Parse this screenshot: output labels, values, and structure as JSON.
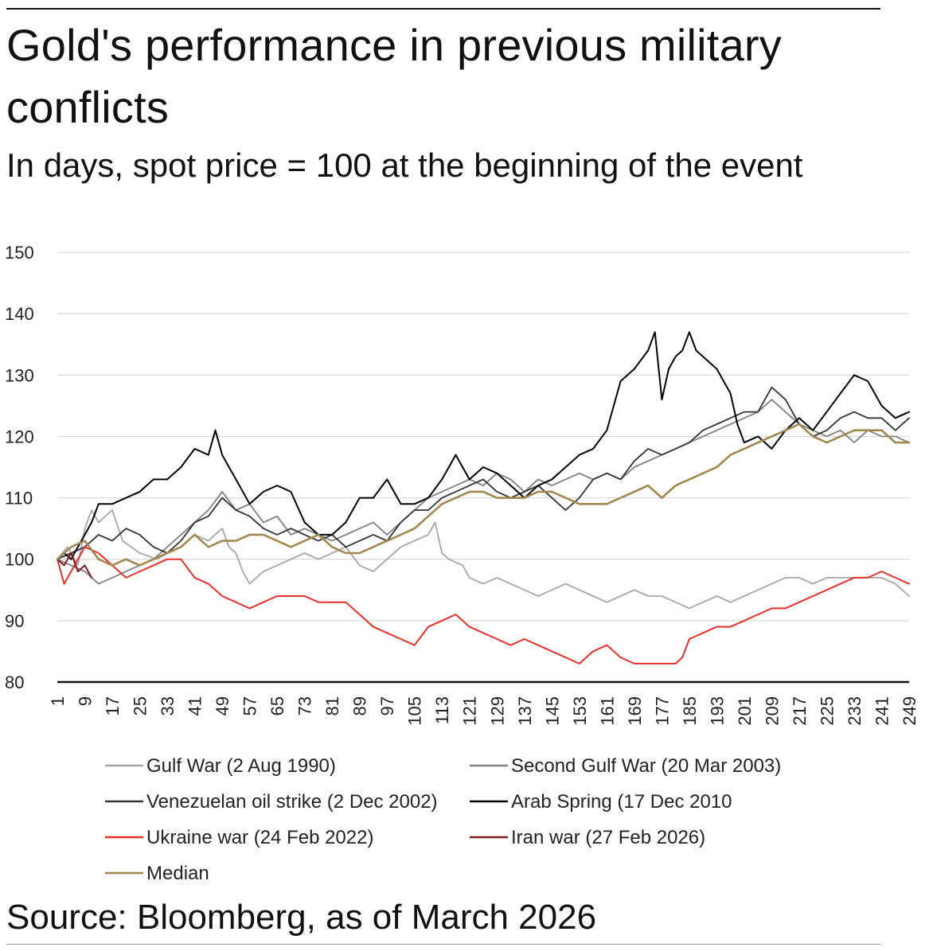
{
  "header": {
    "title": "Gold's performance in previous military conflicts",
    "subtitle": "In days, spot price = 100 at the beginning of the event"
  },
  "footer": {
    "source": "Source: Bloomberg, as of March 2026"
  },
  "chart_data": {
    "type": "line",
    "title": "Gold's performance in previous military conflicts",
    "subtitle": "In days, spot price = 100 at the beginning of the event",
    "xlabel": "",
    "ylabel": "",
    "xlim": [
      1,
      249
    ],
    "ylim": [
      80,
      150
    ],
    "yticks": [
      80,
      90,
      100,
      110,
      120,
      130,
      140,
      150
    ],
    "xticks": [
      1,
      9,
      17,
      25,
      33,
      41,
      49,
      57,
      65,
      73,
      81,
      89,
      97,
      105,
      113,
      121,
      129,
      137,
      145,
      153,
      161,
      169,
      177,
      185,
      193,
      201,
      209,
      217,
      225,
      233,
      241,
      249
    ],
    "grid": "horizontal",
    "legend_position": "bottom",
    "series": [
      {
        "name": "Gulf War (2 Aug 1990)",
        "color": "#a6a6a6",
        "width": 1.8,
        "x": [
          1,
          4,
          7,
          9,
          11,
          13,
          17,
          20,
          25,
          30,
          33,
          37,
          41,
          45,
          49,
          51,
          53,
          55,
          57,
          61,
          65,
          69,
          73,
          77,
          81,
          85,
          89,
          93,
          97,
          101,
          105,
          109,
          111,
          113,
          115,
          119,
          121,
          125,
          129,
          133,
          137,
          141,
          145,
          149,
          153,
          157,
          161,
          165,
          169,
          173,
          177,
          181,
          185,
          189,
          193,
          197,
          201,
          205,
          209,
          213,
          217,
          221,
          225,
          229,
          233,
          237,
          241,
          245,
          249
        ],
        "y": [
          100,
          102,
          99,
          105,
          108,
          106,
          108,
          103,
          101,
          100,
          101,
          102,
          104,
          103,
          105,
          102,
          101,
          98,
          96,
          98,
          99,
          100,
          101,
          100,
          101,
          102,
          99,
          98,
          100,
          102,
          103,
          104,
          106,
          101,
          100,
          99,
          97,
          96,
          97,
          96,
          95,
          94,
          95,
          96,
          95,
          94,
          93,
          94,
          95,
          94,
          94,
          93,
          92,
          93,
          94,
          93,
          94,
          95,
          96,
          97,
          97,
          96,
          97,
          97,
          97,
          97,
          97,
          96,
          94
        ]
      },
      {
        "name": "Second Gulf War (20 Mar 2003)",
        "color": "#808080",
        "width": 1.8,
        "x": [
          1,
          5,
          9,
          13,
          17,
          21,
          25,
          29,
          33,
          37,
          41,
          45,
          49,
          53,
          57,
          61,
          65,
          69,
          73,
          77,
          81,
          85,
          89,
          93,
          97,
          101,
          105,
          109,
          113,
          117,
          121,
          125,
          129,
          133,
          137,
          141,
          145,
          149,
          153,
          157,
          161,
          165,
          169,
          173,
          177,
          181,
          185,
          189,
          193,
          197,
          201,
          205,
          209,
          213,
          217,
          221,
          225,
          229,
          233,
          237,
          241,
          245,
          249
        ],
        "y": [
          100,
          99,
          98,
          96,
          97,
          98,
          99,
          100,
          102,
          104,
          106,
          108,
          111,
          108,
          109,
          106,
          107,
          104,
          105,
          104,
          103,
          104,
          105,
          106,
          104,
          106,
          108,
          110,
          111,
          112,
          113,
          112,
          114,
          113,
          111,
          113,
          112,
          113,
          114,
          113,
          114,
          113,
          115,
          116,
          117,
          118,
          119,
          120,
          121,
          122,
          123,
          124,
          126,
          124,
          122,
          121,
          120,
          121,
          119,
          121,
          120,
          120,
          119
        ]
      },
      {
        "name": "Venezuelan oil strike (2 Dec 2002)",
        "color": "#333333",
        "width": 1.8,
        "x": [
          1,
          5,
          9,
          13,
          17,
          21,
          25,
          29,
          33,
          37,
          41,
          45,
          49,
          53,
          57,
          61,
          65,
          69,
          73,
          77,
          81,
          85,
          89,
          93,
          97,
          101,
          105,
          109,
          113,
          117,
          121,
          125,
          129,
          133,
          137,
          141,
          145,
          149,
          153,
          157,
          161,
          165,
          169,
          173,
          177,
          181,
          185,
          189,
          193,
          197,
          201,
          205,
          209,
          213,
          217,
          221,
          225,
          229,
          233,
          237,
          241,
          245,
          249
        ],
        "y": [
          100,
          101,
          102,
          104,
          103,
          105,
          104,
          102,
          101,
          103,
          106,
          107,
          110,
          108,
          107,
          105,
          104,
          105,
          104,
          103,
          104,
          102,
          103,
          104,
          103,
          106,
          108,
          108,
          110,
          111,
          112,
          113,
          111,
          110,
          111,
          112,
          110,
          108,
          110,
          113,
          114,
          113,
          116,
          118,
          117,
          118,
          119,
          121,
          122,
          123,
          124,
          124,
          128,
          126,
          122,
          120,
          121,
          123,
          124,
          123,
          123,
          121,
          123
        ]
      },
      {
        "name": "Arab Spring (17 Dec 2010",
        "color": "#000000",
        "width": 2,
        "x": [
          1,
          3,
          5,
          7,
          9,
          11,
          13,
          17,
          21,
          25,
          29,
          33,
          37,
          41,
          45,
          47,
          49,
          51,
          53,
          57,
          61,
          65,
          69,
          73,
          77,
          81,
          85,
          89,
          93,
          97,
          101,
          105,
          109,
          113,
          117,
          121,
          125,
          129,
          133,
          137,
          141,
          145,
          149,
          153,
          157,
          161,
          165,
          169,
          173,
          175,
          177,
          179,
          181,
          183,
          185,
          187,
          189,
          193,
          197,
          199,
          201,
          205,
          209,
          213,
          217,
          221,
          225,
          229,
          233,
          237,
          241,
          245,
          249
        ],
        "y": [
          100,
          101,
          100,
          102,
          104,
          106,
          109,
          109,
          110,
          111,
          113,
          113,
          115,
          118,
          117,
          121,
          117,
          115,
          113,
          109,
          111,
          112,
          111,
          106,
          104,
          104,
          106,
          110,
          110,
          113,
          109,
          109,
          110,
          113,
          117,
          113,
          115,
          114,
          112,
          110,
          112,
          113,
          115,
          117,
          118,
          121,
          129,
          131,
          134,
          137,
          126,
          131,
          133,
          134,
          137,
          134,
          133,
          131,
          127,
          122,
          119,
          120,
          118,
          121,
          123,
          121,
          124,
          127,
          130,
          129,
          125,
          123,
          124
        ]
      },
      {
        "name": "Ukraine war (24 Feb 2022)",
        "color": "#e4312b",
        "width": 2,
        "x": [
          1,
          3,
          5,
          7,
          9,
          13,
          17,
          21,
          25,
          29,
          33,
          37,
          41,
          45,
          49,
          53,
          57,
          61,
          65,
          69,
          73,
          77,
          81,
          85,
          89,
          93,
          97,
          101,
          105,
          109,
          113,
          117,
          121,
          125,
          129,
          133,
          137,
          141,
          145,
          149,
          153,
          157,
          161,
          165,
          169,
          173,
          177,
          181,
          183,
          185,
          189,
          193,
          197,
          201,
          205,
          209,
          213,
          217,
          221,
          225,
          229,
          233,
          237,
          241,
          245,
          249
        ],
        "y": [
          100,
          96,
          98,
          100,
          102,
          101,
          99,
          97,
          98,
          99,
          100,
          100,
          97,
          96,
          94,
          93,
          92,
          93,
          94,
          94,
          94,
          93,
          93,
          93,
          91,
          89,
          88,
          87,
          86,
          89,
          90,
          91,
          89,
          88,
          87,
          86,
          87,
          86,
          85,
          84,
          83,
          85,
          86,
          84,
          83,
          83,
          83,
          83,
          84,
          87,
          88,
          89,
          89,
          90,
          91,
          92,
          92,
          93,
          94,
          95,
          96,
          97,
          97,
          98,
          97,
          96
        ]
      },
      {
        "name": "Iran war (27 Feb 2026)",
        "color": "#7f1d1d",
        "width": 2,
        "x": [
          1,
          3,
          5,
          7,
          9,
          11
        ],
        "y": [
          100,
          99,
          101,
          98,
          99,
          97
        ]
      },
      {
        "name": "Median",
        "color": "#a08850",
        "width": 2.6,
        "x": [
          1,
          5,
          9,
          13,
          17,
          21,
          25,
          29,
          33,
          37,
          41,
          45,
          49,
          53,
          57,
          61,
          65,
          69,
          73,
          77,
          81,
          85,
          89,
          93,
          97,
          101,
          105,
          109,
          113,
          117,
          121,
          125,
          129,
          133,
          137,
          141,
          145,
          149,
          153,
          157,
          161,
          165,
          169,
          173,
          177,
          181,
          185,
          189,
          193,
          197,
          201,
          205,
          209,
          213,
          217,
          221,
          225,
          229,
          233,
          237,
          241,
          245,
          249
        ],
        "y": [
          100,
          102,
          103,
          100,
          99,
          100,
          99,
          100,
          101,
          102,
          104,
          102,
          103,
          103,
          104,
          104,
          103,
          102,
          103,
          104,
          102,
          101,
          101,
          102,
          103,
          104,
          105,
          107,
          109,
          110,
          111,
          111,
          110,
          110,
          110,
          111,
          111,
          110,
          109,
          109,
          109,
          110,
          111,
          112,
          110,
          112,
          113,
          114,
          115,
          117,
          118,
          119,
          120,
          121,
          122,
          120,
          119,
          120,
          121,
          121,
          121,
          119,
          119
        ]
      }
    ]
  }
}
